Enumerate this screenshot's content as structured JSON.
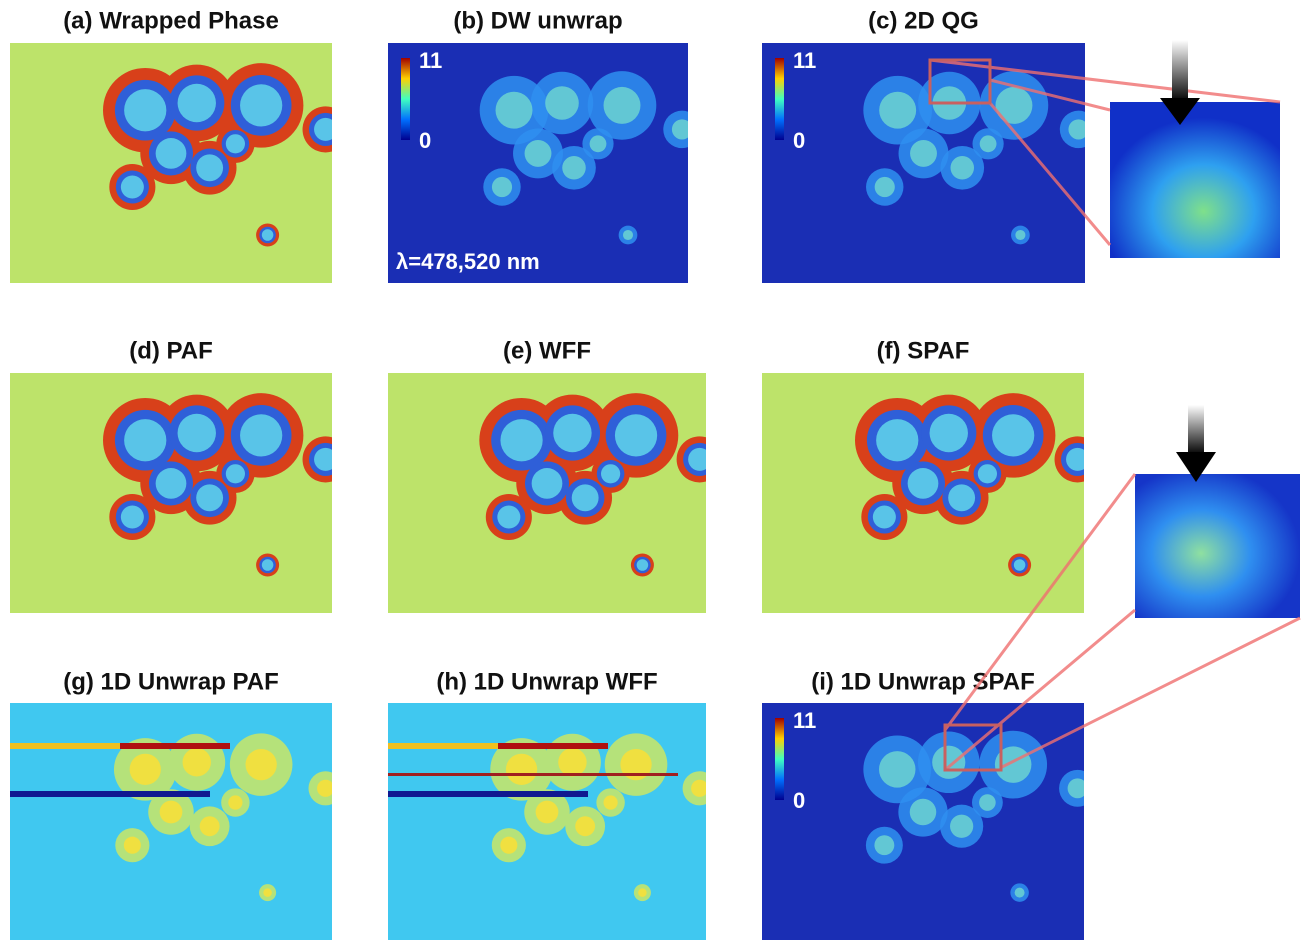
{
  "panels": [
    {
      "title": "(a) Wrapped Phase"
    },
    {
      "title": "(b) DW unwrap",
      "colorbar": {
        "max": 11,
        "min": 0
      },
      "annotation": "λ=478,520 nm"
    },
    {
      "title": "(c) 2D QG",
      "colorbar": {
        "max": 11,
        "min": 0
      }
    },
    {
      "title": "(d) PAF"
    },
    {
      "title": "(e) WFF"
    },
    {
      "title": "(f) SPAF"
    },
    {
      "title": "(g) 1D Unwrap PAF"
    },
    {
      "title": "(h) 1D Unwrap WFF"
    },
    {
      "title": "(i) 1D Unwrap SPAF",
      "colorbar": {
        "max": 11,
        "min": 0
      }
    }
  ]
}
